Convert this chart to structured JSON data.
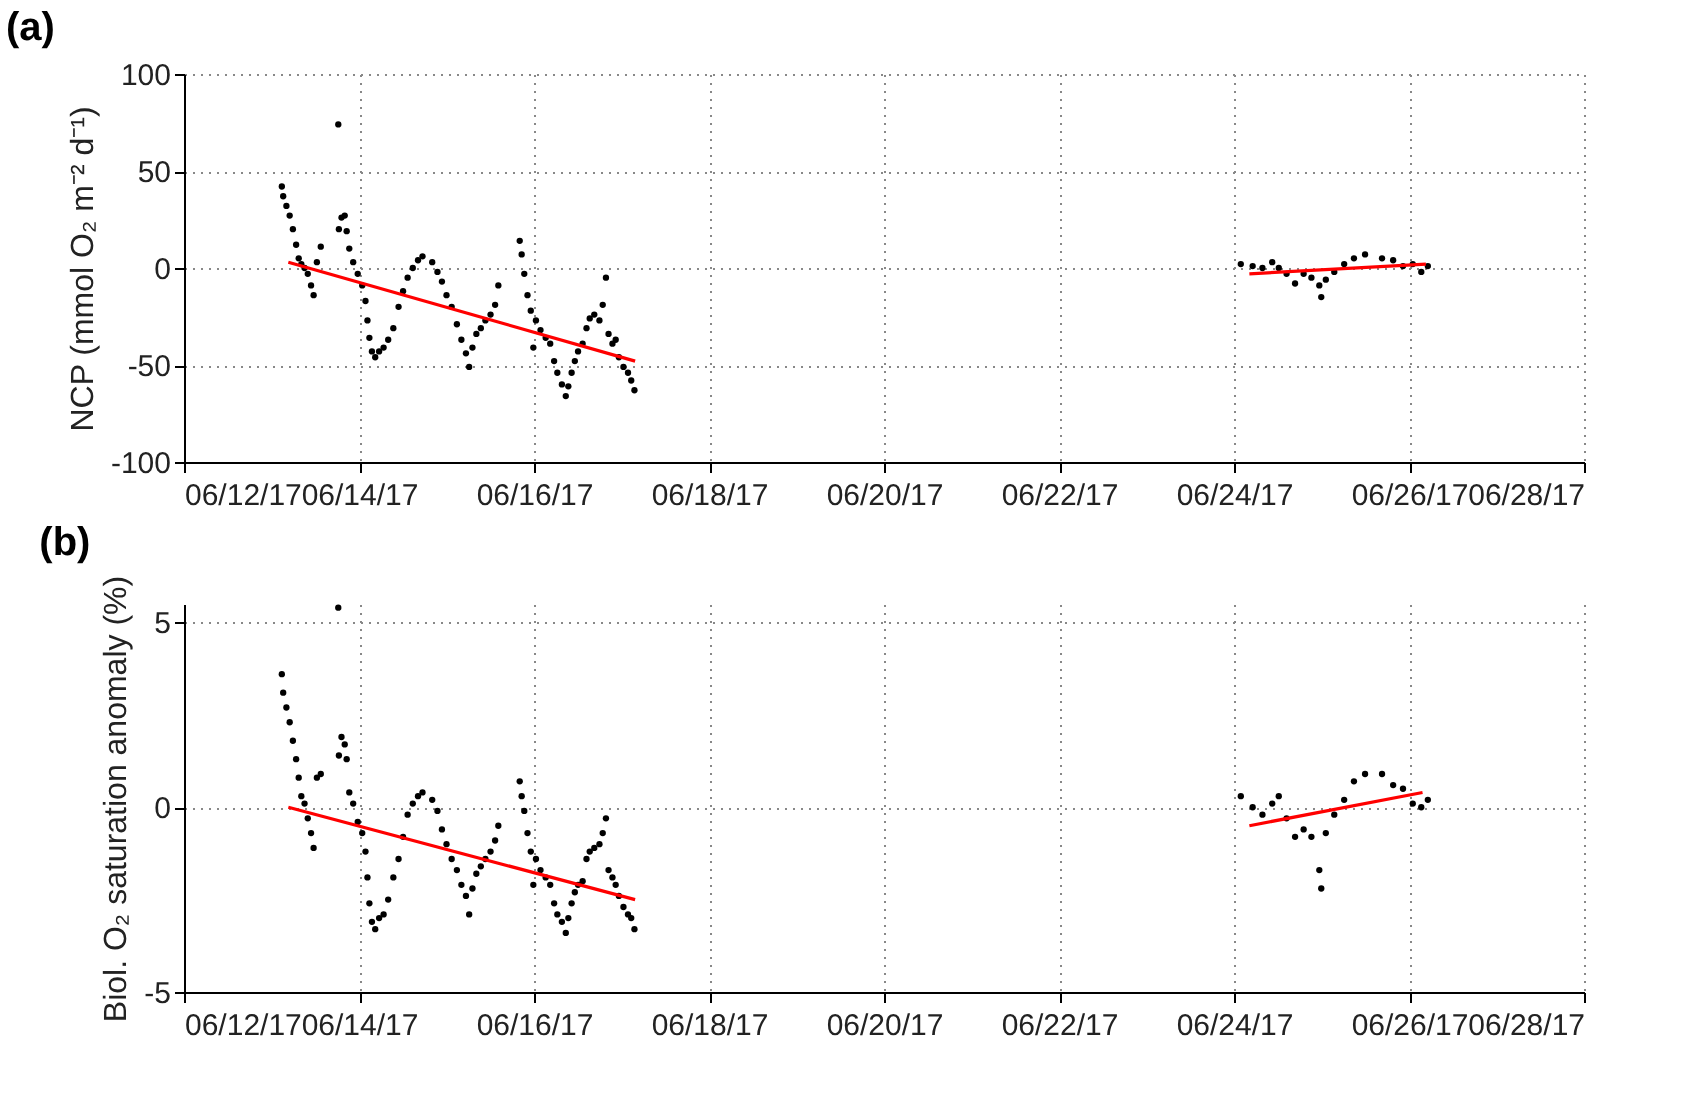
{
  "chart_data": [
    {
      "type": "scatter",
      "title": "(a)",
      "ylabel": "NCP (mmol O₂ m⁻² d⁻¹)",
      "marker": "circle",
      "grid": true,
      "xlim": [
        "--06-12",
        "--06-28"
      ],
      "xticks": [
        {
          "value": "--06-12",
          "label": "06/12/17"
        },
        {
          "value": "--06-14",
          "label": "06/14/17"
        },
        {
          "value": "--06-16",
          "label": "06/16/17"
        },
        {
          "value": "--06-18",
          "label": "06/18/17"
        },
        {
          "value": "--06-20",
          "label": "06/20/17"
        },
        {
          "value": "--06-22",
          "label": "06/22/17"
        },
        {
          "value": "--06-24",
          "label": "06/24/17"
        },
        {
          "value": "--06-26",
          "label": "06/26/17"
        },
        {
          "value": "--06-28",
          "label": "06/28/17"
        }
      ],
      "ylim": [
        -100,
        100
      ],
      "yticks": [
        -100,
        -50,
        0,
        50,
        100
      ],
      "x": [
        "--06-13T02:50",
        "--06-13T03:12",
        "--06-13T04:05",
        "--06-13T04:59",
        "--06-13T05:52",
        "--06-13T06:45",
        "--06-13T07:28",
        "--06-13T08:11",
        "--06-13T09:04",
        "--06-13T09:57",
        "--06-13T10:51",
        "--06-13T11:33",
        "--06-13T12:27",
        "--06-13T13:31",
        "--06-13T18:19",
        "--06-13T18:29",
        "--06-13T19:12",
        "--06-13T20:05",
        "--06-13T20:37",
        "--06-13T21:20",
        "--06-13T22:24",
        "--06-13T23:39",
        "--06-14T00:53",
        "--06-14T01:47",
        "--06-14T02:19",
        "--06-14T02:51",
        "--06-14T03:33",
        "--06-14T04:27",
        "--06-14T05:31",
        "--06-14T06:45",
        "--06-14T08:00",
        "--06-14T09:25",
        "--06-14T10:51",
        "--06-14T12:05",
        "--06-14T13:20",
        "--06-14T14:45",
        "--06-14T16:11",
        "--06-14T17:25",
        "--06-14T20:05",
        "--06-14T21:31",
        "--06-14T22:45",
        "--06-15T00:00",
        "--06-15T01:25",
        "--06-15T02:51",
        "--06-15T04:05",
        "--06-15T05:20",
        "--06-15T06:13",
        "--06-15T07:07",
        "--06-15T08:11",
        "--06-15T09:25",
        "--06-15T10:40",
        "--06-15T12:05",
        "--06-15T13:20",
        "--06-15T14:13",
        "--06-15T20:05",
        "--06-15T20:37",
        "--06-15T21:20",
        "--06-15T22:13",
        "--06-15T23:07",
        "--06-15T23:49",
        "--06-16T00:32",
        "--06-16T01:47",
        "--06-16T03:12",
        "--06-16T04:27",
        "--06-16T05:31",
        "--06-16T06:24",
        "--06-16T07:39",
        "--06-16T08:43",
        "--06-16T09:25",
        "--06-16T10:19",
        "--06-16T11:12",
        "--06-16T12:05",
        "--06-16T13:20",
        "--06-16T14:24",
        "--06-16T15:17",
        "--06-16T16:32",
        "--06-16T17:57",
        "--06-16T18:51",
        "--06-16T19:44",
        "--06-16T20:27",
        "--06-16T21:31",
        "--06-16T22:24",
        "--06-16T23:17",
        "--06-17T00:32",
        "--06-17T01:47",
        "--06-17T02:40",
        "--06-17T03:33",
        "--06-24T01:52",
        "--06-24T05:07",
        "--06-24T07:48",
        "--06-24T10:29",
        "--06-24T12:17",
        "--06-24T14:25",
        "--06-24T16:45",
        "--06-24T19:06",
        "--06-24T21:14",
        "--06-24T23:24",
        "--06-24T23:56",
        "--06-25T01:11",
        "--06-25T03:30",
        "--06-25T06:13",
        "--06-25T08:54",
        "--06-25T11:57",
        "--06-25T16:36",
        "--06-25T19:39",
        "--06-25T22:21",
        "--06-26T01:02",
        "--06-26T03:22",
        "--06-26T05:10"
      ],
      "series": [
        {
          "color": "#000000",
          "values": [
            42,
            37,
            32,
            27,
            20,
            12,
            5,
            2,
            0,
            -3,
            -9,
            -14,
            3,
            11,
            74,
            20,
            26,
            27,
            19,
            10,
            3,
            -3,
            -9,
            -17,
            -27,
            -36,
            -43,
            -46,
            -43,
            -41,
            -37,
            -31,
            -20,
            -12,
            -5,
            0,
            4,
            6,
            3,
            -2,
            -7,
            -14,
            -20,
            -29,
            -37,
            -44,
            -51,
            -41,
            -34,
            -31,
            -27,
            -24,
            -19,
            -9,
            14,
            7,
            -3,
            -14,
            -22,
            -41,
            -27,
            -32,
            -36,
            -39,
            -48,
            -54,
            -60,
            -66,
            -61,
            -54,
            -48,
            -43,
            -39,
            -31,
            -26,
            -24,
            -27,
            -19,
            -5,
            -34,
            -39,
            -37,
            -46,
            -51,
            -54,
            -58,
            -63,
            2,
            1,
            0,
            3,
            0,
            -3,
            -8,
            -3,
            -5,
            -9,
            -15,
            -6,
            -2,
            2,
            5,
            7,
            5,
            4,
            1,
            2,
            -2,
            1
          ]
        },
        {
          "type": "line",
          "marker": "none",
          "color": "#ff0000",
          "x": [
            "--06-13T04:37",
            "--06-17T03:44"
          ],
          "values": [
            3,
            -48
          ]
        },
        {
          "type": "line",
          "marker": "none",
          "color": "#ff0000",
          "x": [
            "--06-24T04:13",
            "--06-26T04:38"
          ],
          "values": [
            -3,
            2
          ]
        }
      ]
    },
    {
      "type": "scatter",
      "title": "(b)",
      "ylabel": "Biol. O₂ saturation anomaly (%)",
      "marker": "circle",
      "grid": true,
      "xlim": [
        "--06-12",
        "--06-28"
      ],
      "xticks": [
        {
          "value": "--06-12",
          "label": "06/12/17"
        },
        {
          "value": "--06-14",
          "label": "06/14/17"
        },
        {
          "value": "--06-16",
          "label": "06/16/17"
        },
        {
          "value": "--06-18",
          "label": "06/18/17"
        },
        {
          "value": "--06-20",
          "label": "06/20/17"
        },
        {
          "value": "--06-22",
          "label": "06/22/17"
        },
        {
          "value": "--06-24",
          "label": "06/24/17"
        },
        {
          "value": "--06-26",
          "label": "06/26/17"
        },
        {
          "value": "--06-28",
          "label": "06/28/17"
        }
      ],
      "ylim": [
        -5,
        5.5
      ],
      "yticks": [
        -5,
        0,
        5
      ],
      "x": [
        "--06-13T02:50",
        "--06-13T03:12",
        "--06-13T04:05",
        "--06-13T04:59",
        "--06-13T05:52",
        "--06-13T06:45",
        "--06-13T07:28",
        "--06-13T08:11",
        "--06-13T09:04",
        "--06-13T09:57",
        "--06-13T10:51",
        "--06-13T11:33",
        "--06-13T12:27",
        "--06-13T13:31",
        "--06-13T18:19",
        "--06-13T18:29",
        "--06-13T19:12",
        "--06-13T20:05",
        "--06-13T20:37",
        "--06-13T21:20",
        "--06-13T22:24",
        "--06-13T23:39",
        "--06-14T00:53",
        "--06-14T01:47",
        "--06-14T02:19",
        "--06-14T02:51",
        "--06-14T03:33",
        "--06-14T04:27",
        "--06-14T05:31",
        "--06-14T06:45",
        "--06-14T08:00",
        "--06-14T09:25",
        "--06-14T10:51",
        "--06-14T12:05",
        "--06-14T13:20",
        "--06-14T14:45",
        "--06-14T16:11",
        "--06-14T17:25",
        "--06-14T20:05",
        "--06-14T21:31",
        "--06-14T22:45",
        "--06-15T00:00",
        "--06-15T01:25",
        "--06-15T02:51",
        "--06-15T04:05",
        "--06-15T05:20",
        "--06-15T06:13",
        "--06-15T07:07",
        "--06-15T08:11",
        "--06-15T09:25",
        "--06-15T10:40",
        "--06-15T12:05",
        "--06-15T13:20",
        "--06-15T14:13",
        "--06-15T20:05",
        "--06-15T20:37",
        "--06-15T21:20",
        "--06-15T22:13",
        "--06-15T23:07",
        "--06-15T23:49",
        "--06-16T00:32",
        "--06-16T01:47",
        "--06-16T03:12",
        "--06-16T04:27",
        "--06-16T05:31",
        "--06-16T06:24",
        "--06-16T07:39",
        "--06-16T08:43",
        "--06-16T09:25",
        "--06-16T10:19",
        "--06-16T11:12",
        "--06-16T12:05",
        "--06-16T13:20",
        "--06-16T14:24",
        "--06-16T15:17",
        "--06-16T16:32",
        "--06-16T17:57",
        "--06-16T18:51",
        "--06-16T19:44",
        "--06-16T20:27",
        "--06-16T21:31",
        "--06-16T22:24",
        "--06-16T23:17",
        "--06-17T00:32",
        "--06-17T01:47",
        "--06-17T02:40",
        "--06-17T03:33",
        "--06-24T01:52",
        "--06-24T05:07",
        "--06-24T07:48",
        "--06-24T10:29",
        "--06-24T12:17",
        "--06-24T14:25",
        "--06-24T16:45",
        "--06-24T19:06",
        "--06-24T21:14",
        "--06-24T23:24",
        "--06-24T23:56",
        "--06-25T01:11",
        "--06-25T03:30",
        "--06-25T06:13",
        "--06-25T08:54",
        "--06-25T11:57",
        "--06-25T16:36",
        "--06-25T19:39",
        "--06-25T22:21",
        "--06-26T01:02",
        "--06-26T03:22",
        "--06-26T05:10"
      ],
      "series": [
        {
          "color": "#000000",
          "values": [
            3.6,
            3.1,
            2.7,
            2.3,
            1.8,
            1.3,
            0.8,
            0.3,
            0.1,
            -0.3,
            -0.7,
            -1.1,
            0.8,
            0.9,
            5.4,
            1.4,
            1.9,
            1.7,
            1.3,
            0.4,
            0.1,
            -0.4,
            -0.7,
            -1.2,
            -1.9,
            -2.6,
            -3.1,
            -3.3,
            -3.0,
            -2.9,
            -2.5,
            -1.9,
            -1.4,
            -0.8,
            -0.2,
            0.1,
            0.3,
            0.4,
            0.2,
            -0.1,
            -0.6,
            -1.0,
            -1.4,
            -1.7,
            -2.1,
            -2.4,
            -2.9,
            -2.2,
            -1.8,
            -1.6,
            -1.4,
            -1.2,
            -0.9,
            -0.5,
            0.7,
            0.3,
            -0.1,
            -0.7,
            -1.2,
            -2.1,
            -1.4,
            -1.7,
            -1.9,
            -2.1,
            -2.6,
            -2.9,
            -3.1,
            -3.4,
            -3.0,
            -2.6,
            -2.3,
            -2.1,
            -2.0,
            -1.4,
            -1.2,
            -1.1,
            -1.0,
            -0.7,
            -0.3,
            -1.7,
            -1.9,
            -2.1,
            -2.4,
            -2.7,
            -2.9,
            -3.0,
            -3.3,
            0.3,
            0.0,
            -0.2,
            0.1,
            0.3,
            -0.3,
            -0.8,
            -0.6,
            -0.8,
            -1.7,
            -2.2,
            -0.7,
            -0.2,
            0.2,
            0.7,
            0.9,
            0.9,
            0.6,
            0.5,
            0.1,
            0.0,
            0.2
          ]
        },
        {
          "type": "line",
          "marker": "none",
          "color": "#ff0000",
          "x": [
            "--06-13T04:37",
            "--06-17T03:44"
          ],
          "values": [
            0.0,
            -2.5
          ]
        },
        {
          "type": "line",
          "marker": "none",
          "color": "#ff0000",
          "x": [
            "--06-24T04:13",
            "--06-26T03:43"
          ],
          "values": [
            -0.5,
            0.4
          ]
        }
      ]
    }
  ]
}
